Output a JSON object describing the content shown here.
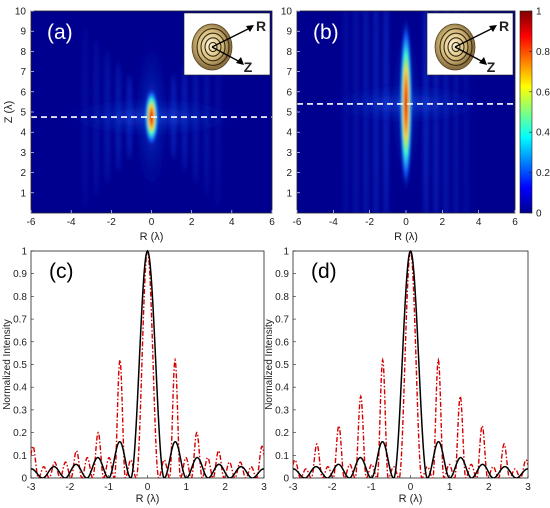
{
  "colors": {
    "background": "#00008f",
    "black_curve": "#000000",
    "red_curve": "#d40000",
    "dashed_line": "#ffffff"
  },
  "chart_data": [
    {
      "panel": "(a)",
      "type": "heatmap",
      "xlabel": "R (λ)",
      "ylabel": "Z (λ)",
      "xlim": [
        -6,
        6
      ],
      "ylim": [
        0,
        10
      ],
      "xticks": [
        -6,
        -4,
        -2,
        0,
        2,
        4,
        6
      ],
      "yticks": [
        1,
        2,
        3,
        4,
        5,
        6,
        7,
        8,
        9,
        10
      ],
      "focus": {
        "r": 0,
        "z": 4.75,
        "length": 1.7,
        "width": 0.3
      },
      "dashed_line_z": 4.75,
      "inset": {
        "labels": [
          "R",
          "Z"
        ],
        "icon": "concentric-ring-lens-icon"
      }
    },
    {
      "panel": "(b)",
      "type": "heatmap",
      "xlabel": "R (λ)",
      "ylabel": "",
      "xlim": [
        -6,
        6
      ],
      "ylim": [
        0,
        10
      ],
      "xticks": [
        -6,
        -4,
        -2,
        0,
        2,
        4,
        6
      ],
      "yticks": [
        1,
        2,
        3,
        4,
        5,
        6,
        7,
        8,
        9,
        10
      ],
      "focus": {
        "r": 0,
        "z": 5.4,
        "length": 5.0,
        "width": 0.3
      },
      "dashed_line_z": 5.4,
      "inset": {
        "labels": [
          "R",
          "Z"
        ],
        "icon": "concentric-ring-lens-icon"
      },
      "colorbar": {
        "min": 0,
        "max": 1,
        "ticks": [
          "0",
          "0.2",
          "0.4",
          "0.6",
          "0.8",
          "1"
        ]
      }
    },
    {
      "panel": "(c)",
      "type": "line",
      "xlabel": "R (λ)",
      "ylabel": "Normalized Intensity",
      "xlim": [
        -3,
        3
      ],
      "ylim": [
        0,
        1
      ],
      "xticks": [
        -3,
        -2,
        -1,
        0,
        1,
        2,
        3
      ],
      "yticks": [
        0,
        0.1,
        0.2,
        0.3,
        0.4,
        0.5,
        0.6,
        0.7,
        0.8,
        0.9,
        1
      ],
      "series": [
        {
          "style": "solid",
          "color": "#000000",
          "zeros": [
            0.43,
            1.0,
            1.56,
            2.12,
            2.7
          ],
          "peaks": [
            1.0,
            0.16,
            0.09,
            0.06,
            0.05,
            0.04
          ]
        },
        {
          "style": "dashdot",
          "color": "#d40000",
          "zeros": [
            0.29,
            0.57,
            0.85,
            1.13,
            1.41,
            1.69,
            1.97,
            2.25,
            2.53,
            2.81
          ],
          "peaks": [
            1.0,
            0.08,
            0.52,
            0.09,
            0.2,
            0.09,
            0.12,
            0.07,
            0.07,
            0.05,
            0.14
          ]
        }
      ]
    },
    {
      "panel": "(d)",
      "type": "line",
      "xlabel": "R (λ)",
      "ylabel": "Normalized Intensity",
      "xlim": [
        -3,
        3
      ],
      "ylim": [
        0,
        1
      ],
      "xticks": [
        -3,
        -2,
        -1,
        0,
        1,
        2,
        3
      ],
      "yticks": [
        0,
        0.1,
        0.2,
        0.3,
        0.4,
        0.5,
        0.6,
        0.7,
        0.8,
        0.9,
        1
      ],
      "series": [
        {
          "style": "solid",
          "color": "#000000",
          "zeros": [
            0.43,
            1.0,
            1.56,
            2.12,
            2.7
          ],
          "peaks": [
            1.0,
            0.16,
            0.09,
            0.06,
            0.05,
            0.04
          ]
        },
        {
          "style": "dashdot",
          "color": "#d40000",
          "zeros": [
            0.29,
            0.57,
            0.85,
            1.13,
            1.41,
            1.69,
            1.97,
            2.25,
            2.53,
            2.81
          ],
          "peaks": [
            1.0,
            0.05,
            0.52,
            0.06,
            0.36,
            0.06,
            0.23,
            0.05,
            0.15,
            0.04,
            0.08
          ]
        }
      ]
    }
  ]
}
